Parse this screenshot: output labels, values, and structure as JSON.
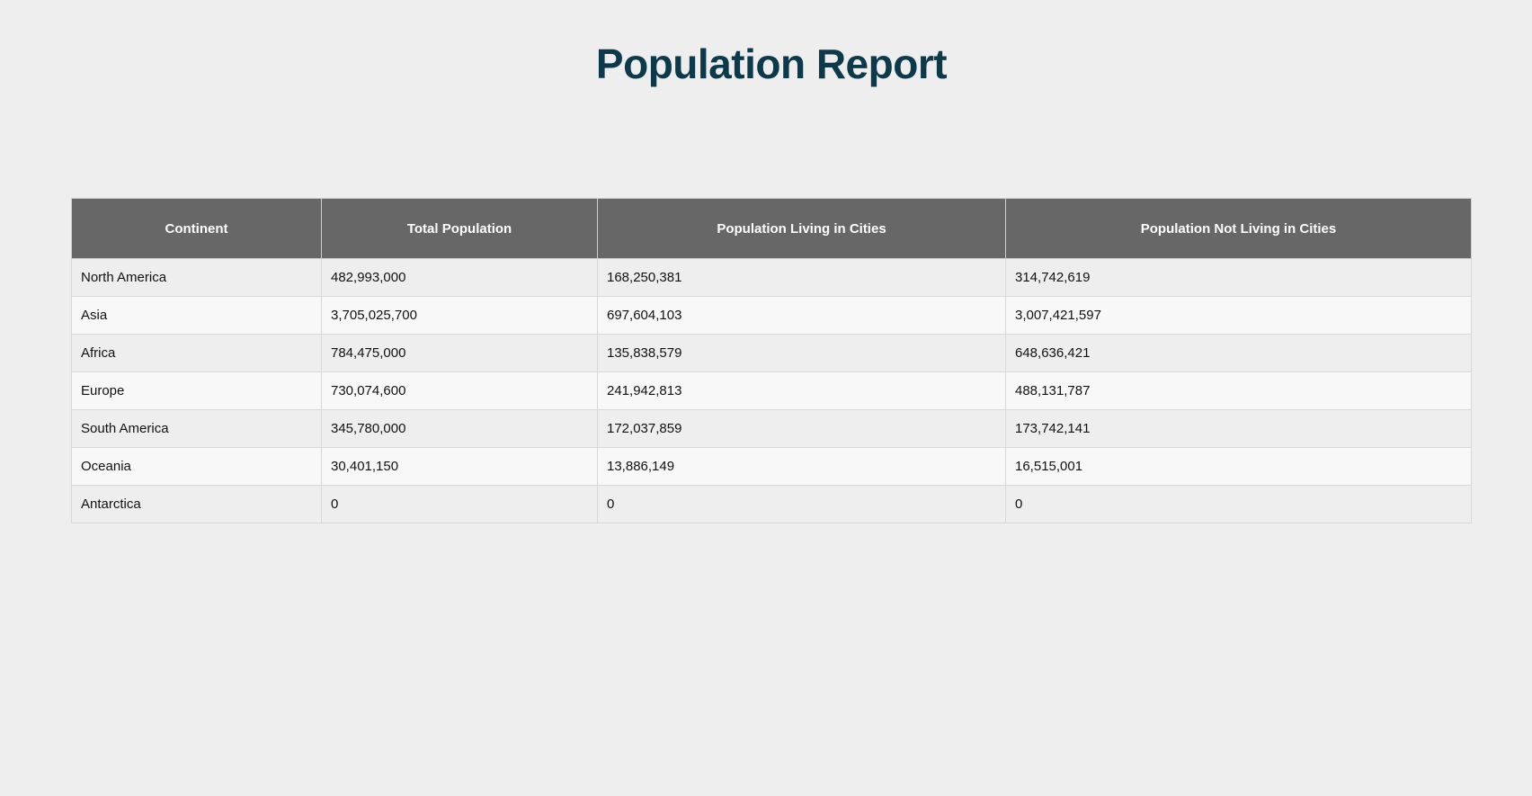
{
  "page": {
    "title": "Population Report"
  },
  "table": {
    "headers": [
      "Continent",
      "Total Population",
      "Population Living in Cities",
      "Population Not Living in Cities"
    ],
    "rows": [
      [
        "North America",
        "482,993,000",
        "168,250,381",
        "314,742,619"
      ],
      [
        "Asia",
        "3,705,025,700",
        "697,604,103",
        "3,007,421,597"
      ],
      [
        "Africa",
        "784,475,000",
        "135,838,579",
        "648,636,421"
      ],
      [
        "Europe",
        "730,074,600",
        "241,942,813",
        "488,131,787"
      ],
      [
        "South America",
        "345,780,000",
        "172,037,859",
        "173,742,141"
      ],
      [
        "Oceania",
        "30,401,150",
        "13,886,149",
        "16,515,001"
      ],
      [
        "Antarctica",
        "0",
        "0",
        "0"
      ]
    ]
  },
  "colors": {
    "title": "#0d3a4a",
    "header_bg": "#676767",
    "page_bg": "#eeeeee",
    "row_alt_bg": "#f8f8f8"
  }
}
